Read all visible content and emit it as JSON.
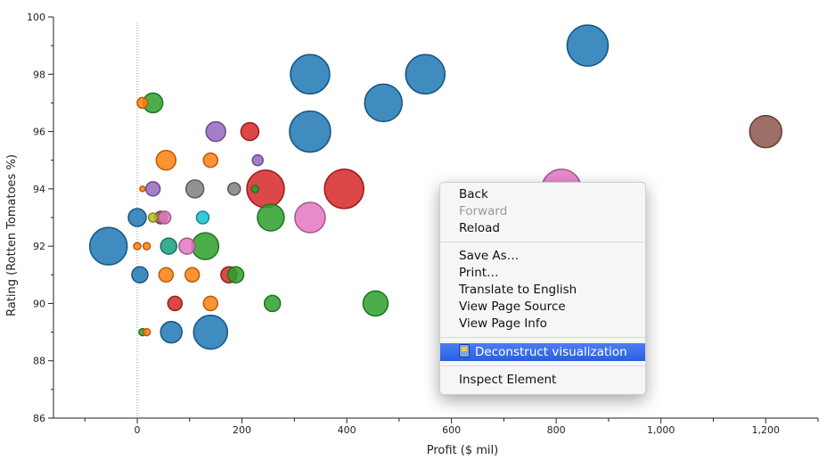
{
  "chart_data": {
    "type": "scatter",
    "title": "",
    "xlabel": "Profit ($ mil)",
    "ylabel": "Rating (Rotten Tomatoes %)",
    "xlim": [
      -160,
      1300
    ],
    "ylim": [
      86,
      100
    ],
    "x_ticks": [
      0,
      200,
      400,
      600,
      800,
      1000,
      1200
    ],
    "x_tick_labels": [
      "0",
      "200",
      "400",
      "600",
      "800",
      "1,000",
      "1,200"
    ],
    "y_ticks": [
      86,
      88,
      90,
      92,
      94,
      96,
      98,
      100
    ],
    "y_tick_labels": [
      "86",
      "88",
      "90",
      "92",
      "94",
      "96",
      "98",
      "100"
    ],
    "zero_reference_line": true,
    "grid": false,
    "legend": "none",
    "size_encoding": "bubble radius",
    "colors": {
      "blue": "#1f77b4",
      "orange": "#ff7f0e",
      "green": "#2ca02c",
      "red": "#d62728",
      "purple": "#9467bd",
      "brown": "#8c564b",
      "pink": "#e377c2",
      "gray": "#7f7f7f",
      "olive": "#bcbd22",
      "cyan": "#17becf"
    },
    "points": [
      {
        "x": 860,
        "y": 99,
        "r": 23,
        "color": "blue"
      },
      {
        "x": 330,
        "y": 98,
        "r": 22,
        "color": "blue"
      },
      {
        "x": 550,
        "y": 98,
        "r": 22,
        "color": "blue"
      },
      {
        "x": 470,
        "y": 97,
        "r": 21,
        "color": "blue"
      },
      {
        "x": 330,
        "y": 96,
        "r": 23,
        "color": "blue"
      },
      {
        "x": 1200,
        "y": 96,
        "r": 18,
        "color": "brown"
      },
      {
        "x": 10,
        "y": 97,
        "r": 6,
        "color": "orange"
      },
      {
        "x": 30,
        "y": 97,
        "r": 11,
        "color": "green"
      },
      {
        "x": 150,
        "y": 96,
        "r": 11,
        "color": "purple"
      },
      {
        "x": 215,
        "y": 96,
        "r": 10,
        "color": "red"
      },
      {
        "x": 55,
        "y": 95,
        "r": 11,
        "color": "orange"
      },
      {
        "x": 140,
        "y": 95,
        "r": 8,
        "color": "orange"
      },
      {
        "x": 230,
        "y": 95,
        "r": 6,
        "color": "purple"
      },
      {
        "x": 810,
        "y": 94,
        "r": 22,
        "color": "pink"
      },
      {
        "x": 395,
        "y": 94,
        "r": 22,
        "color": "red"
      },
      {
        "x": 245,
        "y": 94,
        "r": 21,
        "color": "red"
      },
      {
        "x": 110,
        "y": 94,
        "r": 10,
        "color": "gray"
      },
      {
        "x": 185,
        "y": 94,
        "r": 7,
        "color": "gray"
      },
      {
        "x": 30,
        "y": 94,
        "r": 8,
        "color": "purple"
      },
      {
        "x": 10,
        "y": 94,
        "r": 3,
        "color": "orange"
      },
      {
        "x": 225,
        "y": 94,
        "r": 4,
        "color": "green"
      },
      {
        "x": 0,
        "y": 93,
        "r": 10,
        "color": "blue"
      },
      {
        "x": 30,
        "y": 93,
        "r": 5,
        "color": "olive"
      },
      {
        "x": 45,
        "y": 93,
        "r": 7,
        "color": "brown"
      },
      {
        "x": 52,
        "y": 93,
        "r": 7,
        "color": "pink"
      },
      {
        "x": 125,
        "y": 93,
        "r": 7,
        "color": "cyan"
      },
      {
        "x": 255,
        "y": 93,
        "r": 15,
        "color": "green"
      },
      {
        "x": 330,
        "y": 93,
        "r": 17,
        "color": "pink"
      },
      {
        "x": -55,
        "y": 92,
        "r": 21,
        "color": "blue"
      },
      {
        "x": 0,
        "y": 92,
        "r": 4,
        "color": "orange"
      },
      {
        "x": 18,
        "y": 92,
        "r": 4,
        "color": "orange"
      },
      {
        "x": 60,
        "y": 92,
        "r": 9,
        "color": "teal_green"
      },
      {
        "x": 95,
        "y": 92,
        "r": 9,
        "color": "pink"
      },
      {
        "x": 130,
        "y": 92,
        "r": 15,
        "color": "green"
      },
      {
        "x": 5,
        "y": 91,
        "r": 9,
        "color": "blue"
      },
      {
        "x": 55,
        "y": 91,
        "r": 8,
        "color": "orange"
      },
      {
        "x": 105,
        "y": 91,
        "r": 8,
        "color": "orange"
      },
      {
        "x": 175,
        "y": 91,
        "r": 9,
        "color": "red"
      },
      {
        "x": 188,
        "y": 91,
        "r": 9,
        "color": "green"
      },
      {
        "x": 72,
        "y": 90,
        "r": 8,
        "color": "red"
      },
      {
        "x": 140,
        "y": 90,
        "r": 8,
        "color": "orange"
      },
      {
        "x": 258,
        "y": 90,
        "r": 9,
        "color": "green"
      },
      {
        "x": 455,
        "y": 90,
        "r": 14,
        "color": "green"
      },
      {
        "x": 10,
        "y": 89,
        "r": 4,
        "color": "green"
      },
      {
        "x": 18,
        "y": 89,
        "r": 4,
        "color": "orange"
      },
      {
        "x": 65,
        "y": 89,
        "r": 12,
        "color": "blue"
      },
      {
        "x": 140,
        "y": 89,
        "r": 19,
        "color": "blue"
      }
    ]
  },
  "context_menu": {
    "items": [
      {
        "label": "Back",
        "enabled": true
      },
      {
        "label": "Forward",
        "enabled": false
      },
      {
        "label": "Reload",
        "enabled": true
      }
    ],
    "items2": [
      {
        "label": "Save As…"
      },
      {
        "label": "Print…"
      },
      {
        "label": "Translate to English"
      },
      {
        "label": "View Page Source"
      },
      {
        "label": "View Page Info"
      }
    ],
    "highlighted": {
      "label": "Deconstruct visualization",
      "icon": "plugin-icon"
    },
    "last": {
      "label": "Inspect Element"
    }
  }
}
